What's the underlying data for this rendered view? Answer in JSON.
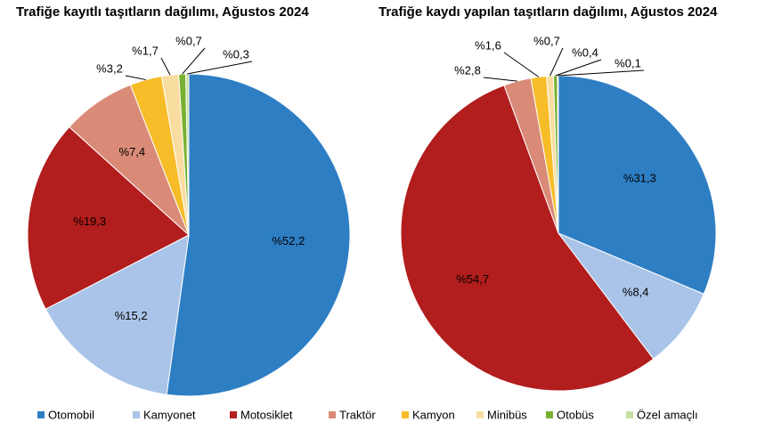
{
  "chart_data": [
    {
      "type": "pie",
      "title": "Trafiğe kayıtlı taşıtların dağılımı, Ağustos 2024",
      "categories": [
        "Otomobil",
        "Kamyonet",
        "Motosiklet",
        "Traktör",
        "Kamyon",
        "Minibüs",
        "Otobüs",
        "Özel amaçlı"
      ],
      "values": [
        52.2,
        15.2,
        19.3,
        7.4,
        3.2,
        1.7,
        0.7,
        0.3
      ],
      "value_labels": [
        "%52,2",
        "%15,2",
        "%19,3",
        "%7,4",
        "%3,2",
        "%1,7",
        "%0,7",
        "%0,3"
      ],
      "colors": [
        "#2e7ec4",
        "#a9c4e8",
        "#b21d1d",
        "#d98b77",
        "#f6bd28",
        "#f9dda0",
        "#78b030",
        "#c6e0a0"
      ]
    },
    {
      "type": "pie",
      "title": "Trafiğe kaydı yapılan taşıtların dağılımı, Ağustos 2024",
      "categories": [
        "Otomobil",
        "Kamyonet",
        "Motosiklet",
        "Traktör",
        "Kamyon",
        "Minibüs",
        "Otobüs",
        "Özel amaçlı"
      ],
      "values": [
        31.3,
        8.4,
        54.7,
        2.8,
        1.6,
        0.7,
        0.4,
        0.1
      ],
      "value_labels": [
        "%31,3",
        "%8,4",
        "%54,7",
        "%2,8",
        "%1,6",
        "%0,7",
        "%0,4",
        "%0,1"
      ],
      "colors": [
        "#2e7ec4",
        "#a9c4e8",
        "#b21d1d",
        "#d98b77",
        "#f6bd28",
        "#f9dda0",
        "#78b030",
        "#c6e0a0"
      ]
    }
  ]
}
